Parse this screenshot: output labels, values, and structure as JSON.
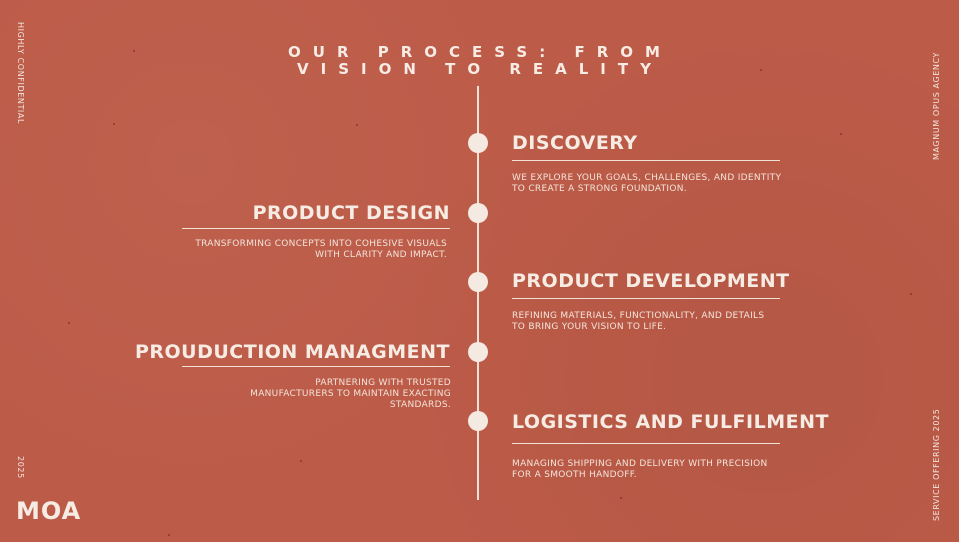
{
  "title_line1": "OUR PROCESS: FROM",
  "title_line2": "VISION TO REALITY",
  "side_labels": {
    "left_top": "HIGHLY CONFIDENTIAL",
    "left_bottom": "2025",
    "right_top": "MAGNUM OPUS AGENCY",
    "right_bottom": "SERVICE OFFERING 2025"
  },
  "logo": "MOA",
  "steps": [
    {
      "title": "DISCOVERY",
      "description": "WE EXPLORE YOUR GOALS, CHALLENGES, AND IDENTITY TO CREATE A STRONG FOUNDATION."
    },
    {
      "title": "PRODUCT DESIGN",
      "description": "TRANSFORMING CONCEPTS INTO COHESIVE VISUALS WITH CLARITY AND IMPACT."
    },
    {
      "title": "PRODUCT DEVELOPMENT",
      "description": "REFINING MATERIALS, FUNCTIONALITY, AND DETAILS TO BRING YOUR VISION TO LIFE."
    },
    {
      "title": "PROUDUCTION MANAGMENT",
      "description": "PARTNERING WITH TRUSTED MANUFACTURERS TO MAINTAIN EXACTING STANDARDS."
    },
    {
      "title": "LOGISTICS AND FULFILMENT",
      "description": "MANAGING SHIPPING AND DELIVERY WITH PRECISION FOR A SMOOTH HANDOFF."
    }
  ],
  "colors": {
    "background": "#bc5b48",
    "foreground": "#f6ece4"
  }
}
